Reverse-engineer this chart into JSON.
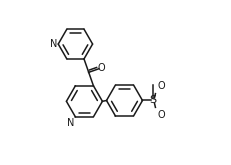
{
  "bg_color": "#ffffff",
  "bond_color": "#1a1a1a",
  "text_color": "#1a1a1a",
  "lw": 1.1,
  "fs": 7.0,
  "p1cx": 0.255,
  "p1cy": 0.735,
  "p1r": 0.105,
  "p2cx": 0.31,
  "p2cy": 0.385,
  "p2r": 0.11,
  "brcx": 0.555,
  "brcy": 0.39,
  "brr": 0.11,
  "N_label": "N",
  "O_label": "O",
  "S_label": "S"
}
